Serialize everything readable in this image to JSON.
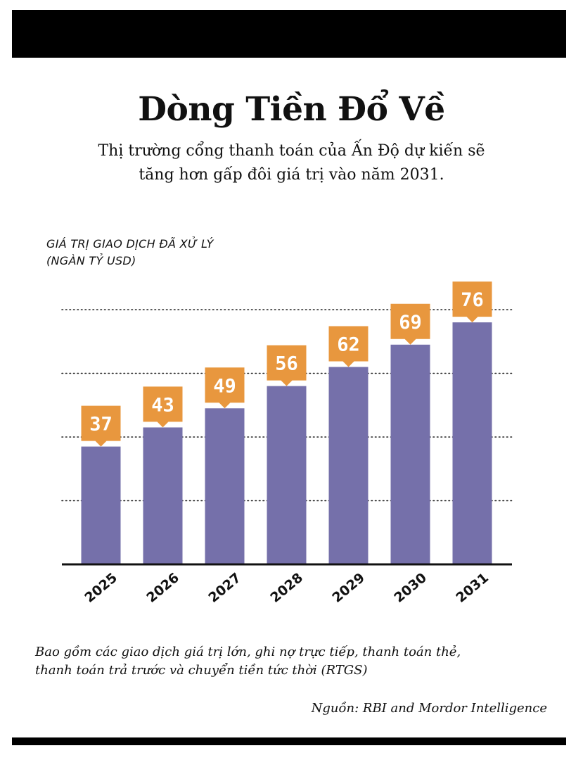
{
  "title": "Dòng Tiền Đổ Về",
  "subtitle_lines": [
    "Thị trường cổng thanh toán của Ấn Độ dự kiến sẽ",
    "tăng hơn gấp đôi giá trị vào năm 2031."
  ],
  "ylabel_lines": [
    "GIÁ TRỊ GIAO DỊCH ĐÃ XỬ LÝ",
    "(NGÀN TỶ USD)"
  ],
  "footnote_lines": [
    "Bao gồm các giao dịch giá trị lớn, ghi nợ trực tiếp, thanh toán thẻ,",
    "thanh toán trả trước và chuyển tiền tức thời (RTGS)"
  ],
  "source": "Nguồn: RBI and Mordor Intelligence",
  "colors": {
    "bar": "#7570aa",
    "label_bg": "#e8973e",
    "label_text": "#ffffff",
    "axis": "#111111"
  },
  "chart_data": {
    "type": "bar",
    "categories": [
      "2025",
      "2026",
      "2027",
      "2028",
      "2029",
      "2030",
      "2031"
    ],
    "values": [
      37,
      43,
      49,
      56,
      62,
      69,
      76
    ],
    "ylabel": "GIÁ TRỊ GIAO DỊCH ĐÃ XỬ LÝ (NGÀN TỶ USD)",
    "ylim": [
      0,
      80
    ],
    "gridlines": [
      20,
      40,
      60,
      80
    ],
    "grid": "dotted",
    "data_labels": true,
    "legend": "none"
  }
}
